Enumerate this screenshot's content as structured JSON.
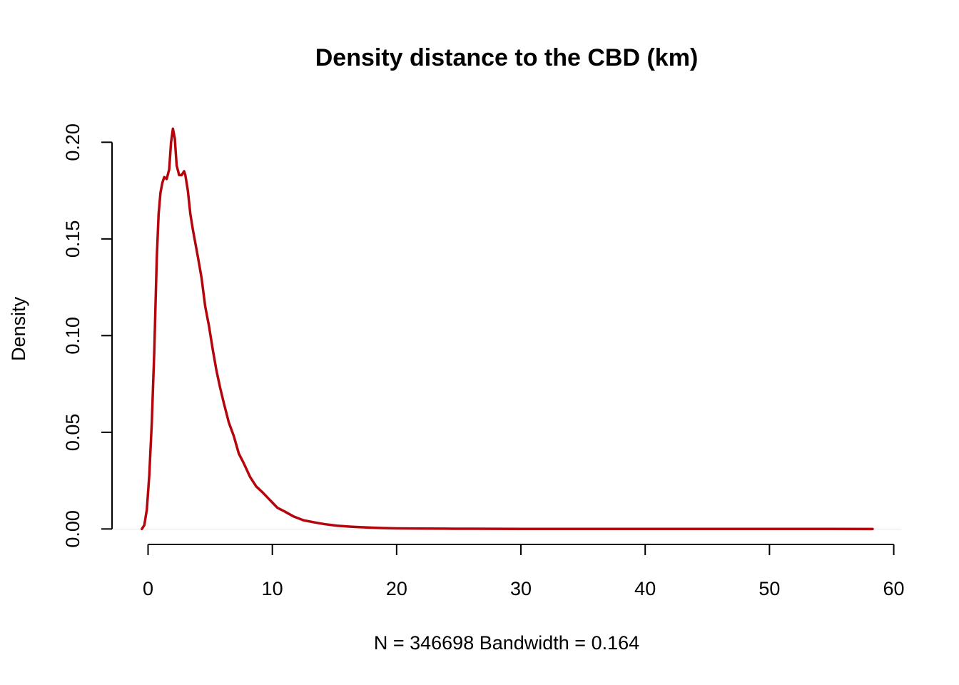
{
  "chart_data": {
    "type": "line",
    "title": "Density distance to the CBD (km)",
    "xlabel": "N = 346698   Bandwidth = 0.164",
    "ylabel": "Density",
    "xlim": [
      -2.9,
      60.6
    ],
    "ylim": [
      -0.008,
      0.216
    ],
    "x_ticks": [
      0,
      10,
      20,
      30,
      40,
      50,
      60
    ],
    "y_ticks": [
      0.0,
      0.05,
      0.1,
      0.15,
      0.2
    ],
    "x_tick_labels": [
      "0",
      "10",
      "20",
      "30",
      "40",
      "50",
      "60"
    ],
    "y_tick_labels": [
      "0.00",
      "0.05",
      "0.10",
      "0.15",
      "0.20"
    ],
    "grid": false,
    "line_color": "#b5050c",
    "series": [
      {
        "x": [
          -0.5,
          -0.3,
          -0.1,
          0.1,
          0.3,
          0.5,
          0.7,
          0.85,
          1.0,
          1.15,
          1.3,
          1.5,
          1.7,
          1.85,
          2.0,
          2.15,
          2.3,
          2.5,
          2.7,
          2.9,
          3.0,
          3.2,
          3.4,
          3.6,
          3.8,
          4.0,
          4.3,
          4.6,
          4.9,
          5.2,
          5.5,
          5.8,
          6.1,
          6.5,
          6.9,
          7.3,
          7.7,
          8.2,
          8.7,
          9.2,
          9.8,
          10.4,
          11.0,
          11.7,
          12.5,
          13.3,
          14.2,
          15.2,
          16.3,
          17.5,
          18.8,
          20.0,
          22.0,
          24.0,
          26.0,
          28.0,
          30.0,
          35.0,
          40.0,
          45.0,
          50.0,
          55.0,
          58.3
        ],
        "values": [
          0.0,
          0.002,
          0.01,
          0.028,
          0.055,
          0.092,
          0.14,
          0.163,
          0.174,
          0.179,
          0.182,
          0.181,
          0.186,
          0.2,
          0.207,
          0.202,
          0.188,
          0.183,
          0.183,
          0.185,
          0.183,
          0.175,
          0.163,
          0.155,
          0.148,
          0.141,
          0.13,
          0.115,
          0.105,
          0.093,
          0.082,
          0.073,
          0.065,
          0.055,
          0.048,
          0.039,
          0.034,
          0.027,
          0.022,
          0.019,
          0.015,
          0.011,
          0.009,
          0.0065,
          0.0045,
          0.0035,
          0.0025,
          0.0017,
          0.0012,
          0.0008,
          0.0005,
          0.0003,
          0.0002,
          0.00015,
          0.0001,
          8e-05,
          5e-05,
          3e-05,
          2e-05,
          1e-05,
          1e-05,
          1e-05,
          0.0
        ]
      }
    ]
  }
}
